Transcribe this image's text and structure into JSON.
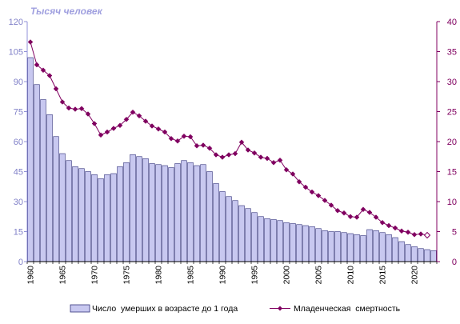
{
  "chart_data": {
    "type": "bar+line",
    "left_axis_unit": "Тысяч человек",
    "series": [
      {
        "name": "Число  умерших в возрасте до 1 года",
        "type": "bar",
        "axis": "left",
        "color": "#c8c8f0",
        "border": "#30307a",
        "values": [
          102,
          88.5,
          81,
          73.5,
          62.5,
          54,
          50.5,
          47.5,
          46.5,
          45,
          43.5,
          41.5,
          43.5,
          44,
          47.5,
          49.5,
          53.5,
          52.5,
          51.5,
          49,
          48.5,
          48,
          47,
          49,
          50.5,
          49.5,
          48,
          48.5,
          45,
          39,
          35,
          32.5,
          30.5,
          28,
          26.5,
          24.5,
          22.5,
          21.5,
          21,
          20.5,
          19.5,
          19,
          18.5,
          18,
          17.5,
          16.5,
          15.5,
          15,
          15,
          14.5,
          14,
          13.5,
          13,
          16,
          15.5,
          14.5,
          13.5,
          12,
          10,
          8.5,
          7.5,
          6.5,
          6,
          5.5
        ]
      },
      {
        "name": "Младенческая  смертность",
        "type": "line",
        "axis": "right",
        "color": "#800060",
        "values": [
          36.6,
          32.8,
          31.9,
          31.0,
          28.8,
          26.6,
          25.6,
          25.4,
          25.5,
          24.6,
          23.0,
          21.1,
          21.6,
          22.2,
          22.7,
          23.7,
          24.9,
          24.3,
          23.4,
          22.6,
          22.1,
          21.6,
          20.5,
          20.1,
          20.9,
          20.8,
          19.3,
          19.4,
          18.9,
          17.8,
          17.4,
          17.8,
          18.0,
          19.9,
          18.6,
          18.1,
          17.4,
          17.2,
          16.5,
          16.9,
          15.3,
          14.6,
          13.3,
          12.4,
          11.6,
          11.0,
          10.2,
          9.4,
          8.5,
          8.1,
          7.5,
          7.4,
          8.7,
          8.2,
          7.4,
          6.5,
          6.0,
          5.6,
          5.1,
          4.9,
          4.5,
          4.6,
          4.4
        ]
      }
    ],
    "years_first": 1960,
    "years_last": 2023,
    "left_axis": {
      "ticks": [
        "0",
        "15",
        "30",
        "45",
        "60",
        "75",
        "90",
        "105",
        "120"
      ],
      "min": 0,
      "max": 120
    },
    "right_axis": {
      "ticks": [
        "0",
        "5",
        "10",
        "15",
        "20",
        "25",
        "30",
        "35",
        "40"
      ],
      "min": 0,
      "max": 40
    },
    "x_axis": {
      "tick_labels": [
        "1960",
        "1965",
        "1970",
        "1975",
        "1980",
        "1985",
        "1990",
        "1995",
        "2000",
        "2005",
        "2010",
        "2015",
        "2020"
      ],
      "tick_years": [
        1960,
        1965,
        1970,
        1975,
        1980,
        1985,
        1990,
        1995,
        2000,
        2005,
        2010,
        2015,
        2020
      ]
    },
    "grid": false,
    "legend": {
      "placement": "bottom"
    }
  }
}
